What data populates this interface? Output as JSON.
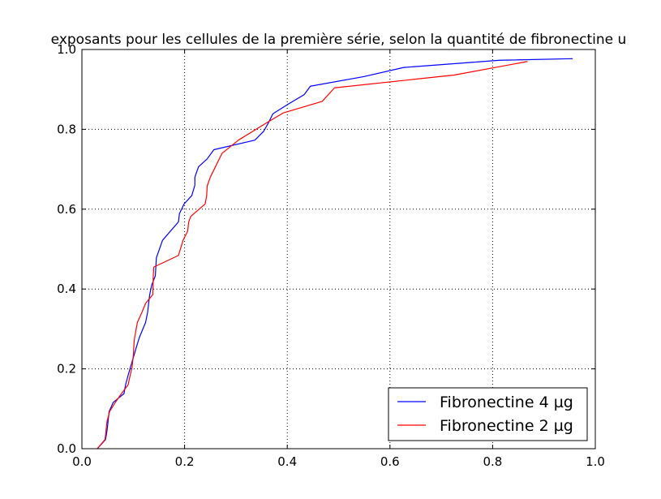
{
  "chart_data": {
    "type": "line",
    "title": "exposants pour les cellules de la première série, selon la quantité de fibronectine u",
    "xlabel": "",
    "ylabel": "",
    "xlim": [
      0.0,
      1.0
    ],
    "ylim": [
      0.0,
      1.0
    ],
    "xticks": [
      "0.0",
      "0.2",
      "0.4",
      "0.6",
      "0.8",
      "1.0"
    ],
    "yticks": [
      "0.0",
      "0.2",
      "0.4",
      "0.6",
      "0.8",
      "1.0"
    ],
    "grid": true,
    "legend_position": "lower-right",
    "series": [
      {
        "name": "Fibronectine 4 µg",
        "color": "#0000ff",
        "x": [
          0.03,
          0.046,
          0.049,
          0.051,
          0.053,
          0.061,
          0.082,
          0.085,
          0.09,
          0.095,
          0.101,
          0.106,
          0.112,
          0.124,
          0.128,
          0.13,
          0.132,
          0.136,
          0.143,
          0.145,
          0.157,
          0.188,
          0.19,
          0.199,
          0.214,
          0.22,
          0.22,
          0.227,
          0.244,
          0.257,
          0.337,
          0.354,
          0.364,
          0.372,
          0.403,
          0.433,
          0.445,
          0.549,
          0.627,
          0.814,
          0.956
        ],
        "y": [
          0.0,
          0.023,
          0.046,
          0.069,
          0.093,
          0.116,
          0.138,
          0.16,
          0.184,
          0.206,
          0.232,
          0.254,
          0.279,
          0.316,
          0.342,
          0.364,
          0.386,
          0.41,
          0.433,
          0.478,
          0.522,
          0.568,
          0.589,
          0.613,
          0.634,
          0.66,
          0.68,
          0.706,
          0.726,
          0.749,
          0.773,
          0.795,
          0.818,
          0.839,
          0.864,
          0.887,
          0.908,
          0.932,
          0.955,
          0.973,
          0.977
        ]
      },
      {
        "name": "Fibronectine 2 µg",
        "color": "#ff0000",
        "x": [
          0.03,
          0.045,
          0.047,
          0.049,
          0.054,
          0.065,
          0.077,
          0.09,
          0.094,
          0.098,
          0.1,
          0.101,
          0.102,
          0.104,
          0.108,
          0.117,
          0.124,
          0.138,
          0.139,
          0.14,
          0.188,
          0.193,
          0.197,
          0.206,
          0.208,
          0.212,
          0.24,
          0.243,
          0.244,
          0.25,
          0.273,
          0.305,
          0.362,
          0.392,
          0.468,
          0.492,
          0.725,
          0.868
        ],
        "y": [
          0.0,
          0.023,
          0.046,
          0.069,
          0.093,
          0.116,
          0.138,
          0.16,
          0.184,
          0.206,
          0.232,
          0.254,
          0.273,
          0.288,
          0.316,
          0.342,
          0.364,
          0.386,
          0.433,
          0.455,
          0.484,
          0.505,
          0.522,
          0.545,
          0.568,
          0.582,
          0.613,
          0.634,
          0.658,
          0.68,
          0.74,
          0.773,
          0.818,
          0.841,
          0.87,
          0.904,
          0.936,
          0.97
        ]
      }
    ]
  }
}
